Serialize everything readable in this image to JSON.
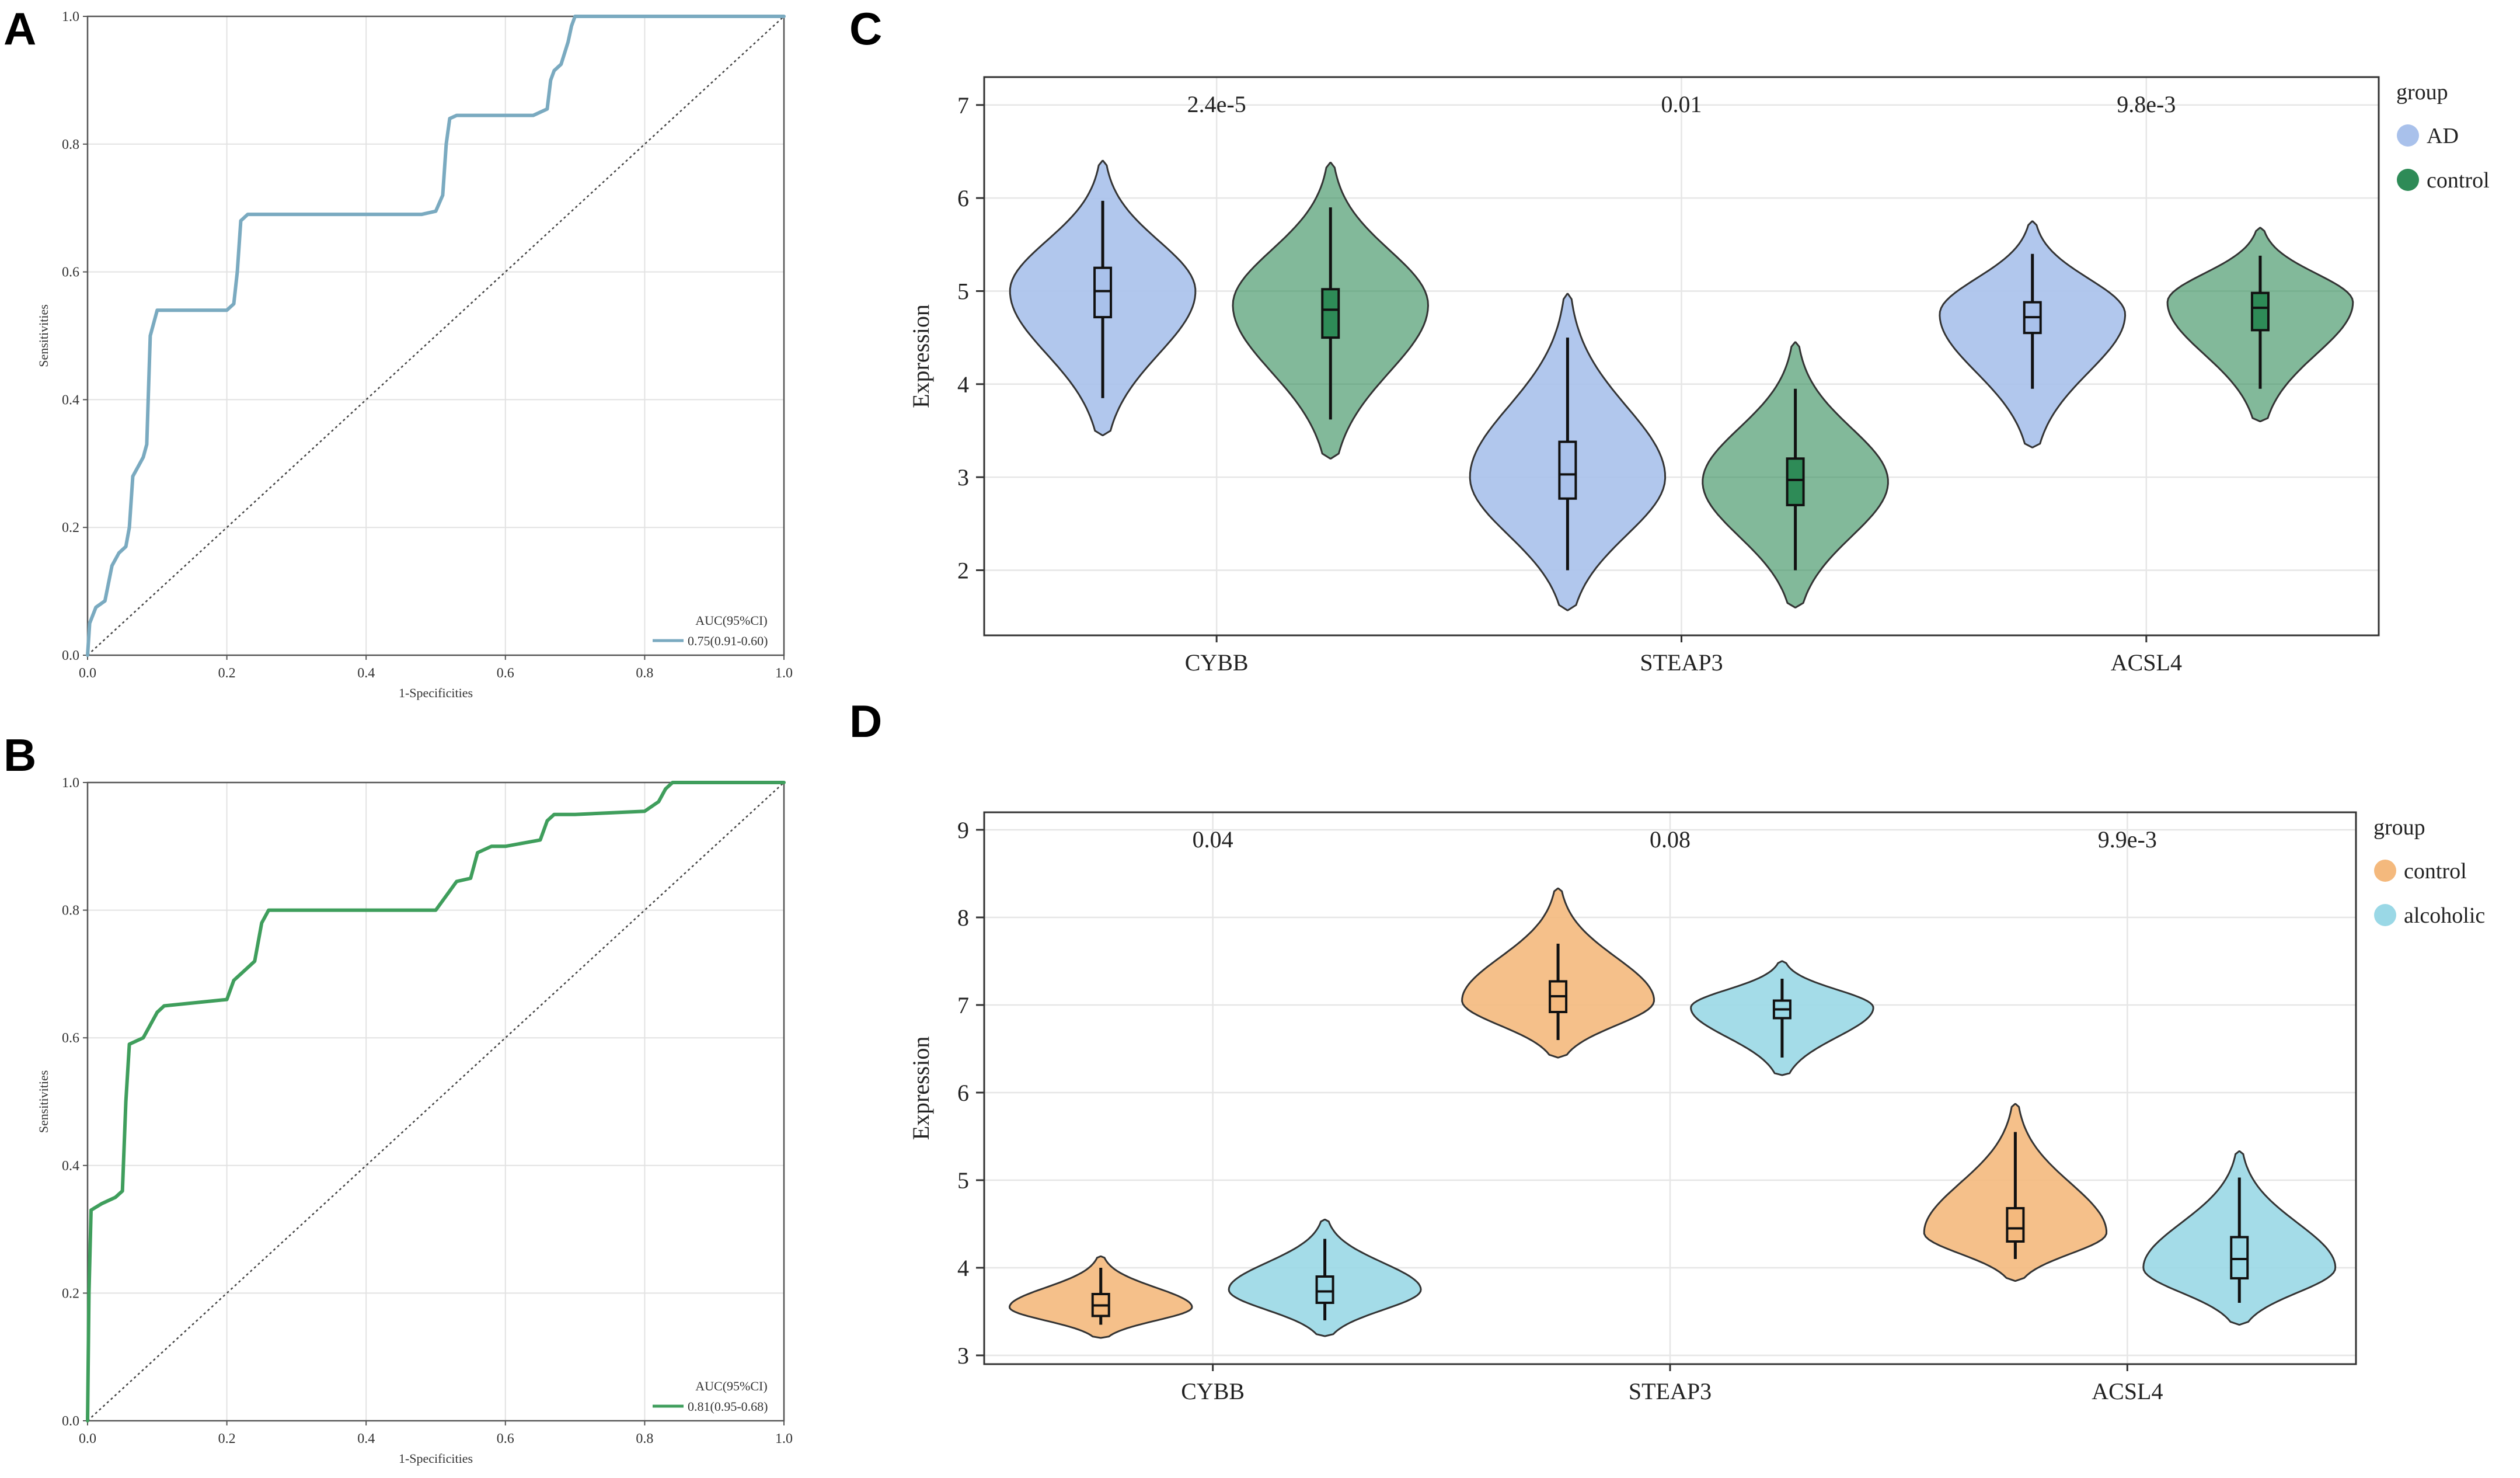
{
  "figure": {
    "panels": [
      {
        "id": "A",
        "letter": "A"
      },
      {
        "id": "B",
        "letter": "B"
      },
      {
        "id": "C",
        "letter": "C"
      },
      {
        "id": "D",
        "letter": "D"
      }
    ]
  },
  "chart_data": [
    {
      "panel": "A",
      "type": "line",
      "title": "",
      "xlabel": "1-Specificities",
      "ylabel": "Sensitivities",
      "xlim": [
        0,
        1
      ],
      "ylim": [
        0,
        1
      ],
      "xticks": [
        "0.0",
        "0.2",
        "0.4",
        "0.6",
        "0.8",
        "1.0"
      ],
      "yticks": [
        "0.0",
        "0.2",
        "0.4",
        "0.6",
        "0.8",
        "1.0"
      ],
      "grid": true,
      "legend_title": "AUC(95%CI)",
      "legend_position": "bottom-right",
      "color": "#7aaac0",
      "series": [
        {
          "name": "0.75(0.91-0.60)",
          "x": [
            0,
            0.003,
            0.012,
            0.025,
            0.035,
            0.045,
            0.055,
            0.06,
            0.065,
            0.075,
            0.08,
            0.085,
            0.09,
            0.1,
            0.14,
            0.18,
            0.2,
            0.21,
            0.215,
            0.22,
            0.23,
            0.3,
            0.4,
            0.48,
            0.5,
            0.51,
            0.515,
            0.52,
            0.53,
            0.6,
            0.64,
            0.66,
            0.665,
            0.67,
            0.68,
            0.69,
            0.695,
            0.7,
            0.71,
            0.75,
            1.0
          ],
          "y": [
            0,
            0.05,
            0.075,
            0.085,
            0.14,
            0.16,
            0.17,
            0.2,
            0.28,
            0.3,
            0.31,
            0.33,
            0.5,
            0.54,
            0.54,
            0.54,
            0.54,
            0.55,
            0.6,
            0.68,
            0.69,
            0.69,
            0.69,
            0.69,
            0.695,
            0.72,
            0.8,
            0.84,
            0.845,
            0.845,
            0.845,
            0.855,
            0.9,
            0.915,
            0.925,
            0.96,
            0.985,
            1.0,
            1.0,
            1.0,
            1.0
          ]
        },
        {
          "name": "reference",
          "x": [
            0,
            1
          ],
          "y": [
            0,
            1
          ]
        }
      ]
    },
    {
      "panel": "B",
      "type": "line",
      "title": "",
      "xlabel": "1-Specificities",
      "ylabel": "Sensitivities",
      "xlim": [
        0,
        1
      ],
      "ylim": [
        0,
        1
      ],
      "xticks": [
        "0.0",
        "0.2",
        "0.4",
        "0.6",
        "0.8",
        "1.0"
      ],
      "yticks": [
        "0.0",
        "0.2",
        "0.4",
        "0.6",
        "0.8",
        "1.0"
      ],
      "grid": true,
      "legend_title": "AUC(95%CI)",
      "legend_position": "bottom-right",
      "color": "#3f9e5c",
      "series": [
        {
          "name": "0.81(0.95-0.68)",
          "x": [
            0,
            0.002,
            0.005,
            0.02,
            0.04,
            0.05,
            0.055,
            0.06,
            0.08,
            0.1,
            0.11,
            0.2,
            0.21,
            0.22,
            0.24,
            0.25,
            0.26,
            0.27,
            0.4,
            0.5,
            0.52,
            0.53,
            0.55,
            0.56,
            0.58,
            0.6,
            0.65,
            0.66,
            0.67,
            0.7,
            0.8,
            0.82,
            0.83,
            0.84,
            0.85,
            1.0
          ],
          "y": [
            0,
            0.2,
            0.33,
            0.34,
            0.35,
            0.36,
            0.5,
            0.59,
            0.6,
            0.64,
            0.65,
            0.66,
            0.69,
            0.7,
            0.72,
            0.78,
            0.8,
            0.8,
            0.8,
            0.8,
            0.83,
            0.845,
            0.85,
            0.89,
            0.9,
            0.9,
            0.91,
            0.94,
            0.95,
            0.95,
            0.955,
            0.97,
            0.99,
            1.0,
            1.0,
            1.0
          ]
        },
        {
          "name": "reference",
          "x": [
            0,
            1
          ],
          "y": [
            0,
            1
          ]
        }
      ]
    },
    {
      "panel": "C",
      "type": "violin",
      "title": "",
      "xlabel": "",
      "ylabel": "Expression",
      "ylim": [
        1.3,
        7.3
      ],
      "yticks": [
        2,
        3,
        4,
        5,
        6,
        7
      ],
      "categories": [
        "CYBB",
        "STEAP3",
        "ACSL4"
      ],
      "pvalues": [
        "2.4e-5",
        "0.01",
        "9.8e-3"
      ],
      "grid": true,
      "legend_title": "group",
      "legend_position": "top-right",
      "groups": [
        {
          "name": "AD",
          "color": "#a9c1eb"
        },
        {
          "name": "control",
          "color": "#2e8b57"
        }
      ],
      "violins": [
        {
          "category": "CYBB",
          "group": "AD",
          "min": 3.45,
          "max": 6.4,
          "q1": 4.72,
          "median": 5.0,
          "q3": 5.25,
          "wlo": 3.85,
          "whi": 5.97,
          "mode": 5.0,
          "halfwidth": 0.95
        },
        {
          "category": "CYBB",
          "group": "control",
          "min": 3.2,
          "max": 6.38,
          "q1": 4.5,
          "median": 4.8,
          "q3": 5.02,
          "wlo": 3.62,
          "whi": 5.9,
          "mode": 4.85,
          "halfwidth": 1.0
        },
        {
          "category": "STEAP3",
          "group": "AD",
          "min": 1.57,
          "max": 4.97,
          "q1": 2.77,
          "median": 3.03,
          "q3": 3.38,
          "wlo": 2.0,
          "whi": 4.5,
          "mode": 3.0,
          "halfwidth": 1.0
        },
        {
          "category": "STEAP3",
          "group": "control",
          "min": 1.6,
          "max": 4.45,
          "q1": 2.7,
          "median": 2.97,
          "q3": 3.2,
          "wlo": 2.0,
          "whi": 3.95,
          "mode": 2.95,
          "halfwidth": 0.95
        },
        {
          "category": "ACSL4",
          "group": "AD",
          "min": 3.32,
          "max": 5.75,
          "q1": 4.55,
          "median": 4.72,
          "q3": 4.88,
          "wlo": 3.95,
          "whi": 5.4,
          "mode": 4.75,
          "halfwidth": 0.95
        },
        {
          "category": "ACSL4",
          "group": "control",
          "min": 3.6,
          "max": 5.68,
          "q1": 4.58,
          "median": 4.82,
          "q3": 4.98,
          "wlo": 3.95,
          "whi": 5.38,
          "mode": 4.88,
          "halfwidth": 0.95
        }
      ]
    },
    {
      "panel": "D",
      "type": "violin",
      "title": "",
      "xlabel": "",
      "ylabel": "Expression",
      "ylim": [
        2.9,
        9.2
      ],
      "yticks": [
        3,
        4,
        5,
        6,
        7,
        8,
        9
      ],
      "categories": [
        "CYBB",
        "STEAP3",
        "ACSL4"
      ],
      "pvalues": [
        "0.04",
        "0.08",
        "9.9e-3"
      ],
      "grid": true,
      "legend_title": "group",
      "legend_position": "top-right",
      "groups": [
        {
          "name": "control",
          "color": "#f4b97d"
        },
        {
          "name": "alcoholic",
          "color": "#9ad8e6"
        }
      ],
      "violins": [
        {
          "category": "CYBB",
          "group": "control",
          "min": 3.2,
          "max": 4.13,
          "q1": 3.45,
          "median": 3.57,
          "q3": 3.7,
          "wlo": 3.35,
          "whi": 4.0,
          "mode": 3.55,
          "halfwidth": 0.95
        },
        {
          "category": "CYBB",
          "group": "alcoholic",
          "min": 3.22,
          "max": 4.55,
          "q1": 3.6,
          "median": 3.73,
          "q3": 3.9,
          "wlo": 3.4,
          "whi": 4.33,
          "mode": 3.75,
          "halfwidth": 1.0
        },
        {
          "category": "STEAP3",
          "group": "control",
          "min": 6.4,
          "max": 8.33,
          "q1": 6.92,
          "median": 7.1,
          "q3": 7.27,
          "wlo": 6.6,
          "whi": 7.7,
          "mode": 7.05,
          "halfwidth": 1.0
        },
        {
          "category": "STEAP3",
          "group": "alcoholic",
          "min": 6.2,
          "max": 7.5,
          "q1": 6.85,
          "median": 6.95,
          "q3": 7.05,
          "wlo": 6.4,
          "whi": 7.3,
          "mode": 6.97,
          "halfwidth": 0.95
        },
        {
          "category": "ACSL4",
          "group": "control",
          "min": 3.85,
          "max": 5.87,
          "q1": 4.3,
          "median": 4.45,
          "q3": 4.68,
          "wlo": 4.1,
          "whi": 5.55,
          "mode": 4.4,
          "halfwidth": 0.95
        },
        {
          "category": "ACSL4",
          "group": "alcoholic",
          "min": 3.35,
          "max": 5.33,
          "q1": 3.88,
          "median": 4.1,
          "q3": 4.35,
          "wlo": 3.6,
          "whi": 5.03,
          "mode": 4.0,
          "halfwidth": 1.0
        }
      ]
    }
  ]
}
